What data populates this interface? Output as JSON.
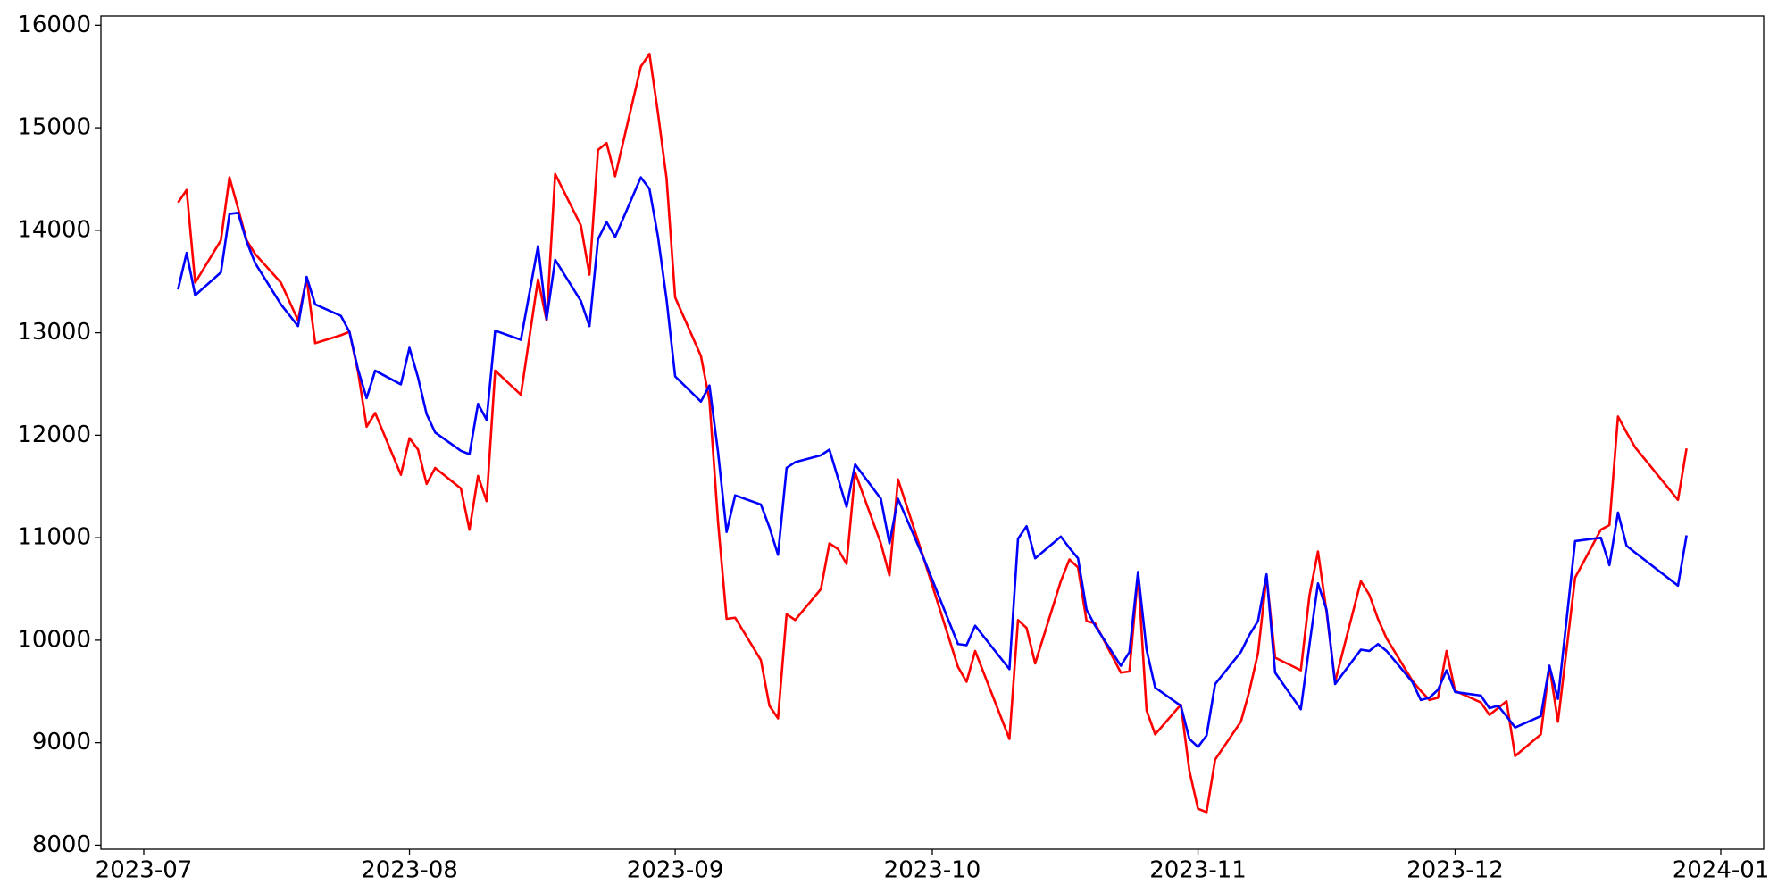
{
  "chart_data": {
    "type": "line",
    "x": [
      "2023-07-05",
      "2023-07-06",
      "2023-07-07",
      "2023-07-10",
      "2023-07-11",
      "2023-07-12",
      "2023-07-13",
      "2023-07-14",
      "2023-07-17",
      "2023-07-19",
      "2023-07-20",
      "2023-07-21",
      "2023-07-24",
      "2023-07-25",
      "2023-07-26",
      "2023-07-27",
      "2023-07-28",
      "2023-07-31",
      "2023-08-01",
      "2023-08-02",
      "2023-08-03",
      "2023-08-04",
      "2023-08-07",
      "2023-08-08",
      "2023-08-09",
      "2023-08-10",
      "2023-08-11",
      "2023-08-14",
      "2023-08-16",
      "2023-08-17",
      "2023-08-18",
      "2023-08-21",
      "2023-08-22",
      "2023-08-23",
      "2023-08-24",
      "2023-08-25",
      "2023-08-28",
      "2023-08-29",
      "2023-08-30",
      "2023-08-31",
      "2023-09-01",
      "2023-09-04",
      "2023-09-05",
      "2023-09-06",
      "2023-09-07",
      "2023-09-08",
      "2023-09-11",
      "2023-09-12",
      "2023-09-13",
      "2023-09-14",
      "2023-09-15",
      "2023-09-18",
      "2023-09-19",
      "2023-09-20",
      "2023-09-21",
      "2023-09-22",
      "2023-09-25",
      "2023-09-26",
      "2023-09-27",
      "2023-09-30",
      "2023-10-04",
      "2023-10-05",
      "2023-10-06",
      "2023-10-10",
      "2023-10-11",
      "2023-10-12",
      "2023-10-13",
      "2023-10-16",
      "2023-10-17",
      "2023-10-18",
      "2023-10-19",
      "2023-10-20",
      "2023-10-23",
      "2023-10-24",
      "2023-10-25",
      "2023-10-26",
      "2023-10-27",
      "2023-10-30",
      "2023-10-31",
      "2023-11-01",
      "2023-11-02",
      "2023-11-03",
      "2023-11-06",
      "2023-11-07",
      "2023-11-08",
      "2023-11-09",
      "2023-11-10",
      "2023-11-13",
      "2023-11-14",
      "2023-11-15",
      "2023-11-16",
      "2023-11-17",
      "2023-11-20",
      "2023-11-21",
      "2023-11-22",
      "2023-11-23",
      "2023-11-26",
      "2023-11-27",
      "2023-11-28",
      "2023-11-29",
      "2023-11-30",
      "2023-12-01",
      "2023-12-04",
      "2023-12-05",
      "2023-12-06",
      "2023-12-07",
      "2023-12-08",
      "2023-12-11",
      "2023-12-12",
      "2023-12-13",
      "2023-12-15",
      "2023-12-18",
      "2023-12-19",
      "2023-12-20",
      "2023-12-21",
      "2023-12-22",
      "2023-12-27",
      "2023-12-28"
    ],
    "series": [
      {
        "color": "#ff0000",
        "values": [
          14270,
          14393,
          13489,
          13902,
          14516,
          14214,
          13902,
          13768,
          13489,
          13121,
          13534,
          12898,
          12976,
          13009,
          12619,
          12083,
          12217,
          11614,
          11971,
          11860,
          11525,
          11681,
          11480,
          11078,
          11603,
          11357,
          12630,
          12395,
          13522,
          13121,
          14549,
          14047,
          13567,
          14784,
          14851,
          14527,
          15598,
          15721,
          15141,
          14505,
          13344,
          12775,
          12340,
          11157,
          10208,
          10219,
          9806,
          9360,
          9237,
          10253,
          10197,
          10498,
          10945,
          10889,
          10744,
          11636,
          10945,
          10632,
          11569,
          10799,
          9739,
          9594,
          9895,
          9036,
          10197,
          10119,
          9773,
          10576,
          10788,
          10710,
          10186,
          10163,
          9683,
          9695,
          10643,
          9315,
          9081,
          9371,
          8724,
          8355,
          8322,
          8835,
          9204,
          9505,
          9873,
          10621,
          9829,
          9706,
          10431,
          10866,
          10275,
          9594,
          10576,
          10442,
          10208,
          10018,
          9605,
          9505,
          9416,
          9438,
          9895,
          9505,
          9393,
          9271,
          9337,
          9404,
          8869,
          9081,
          9750,
          9204,
          10610,
          11078,
          11123,
          12183,
          12027,
          11882,
          11369,
          11871
        ]
      },
      {
        "color": "#0000ff",
        "values": [
          13422,
          13779,
          13366,
          13589,
          14159,
          14170,
          13891,
          13679,
          13277,
          13065,
          13545,
          13277,
          13165,
          13009,
          12641,
          12362,
          12630,
          12496,
          12853,
          12563,
          12206,
          12027,
          11848,
          11815,
          12306,
          12150,
          13020,
          12931,
          13846,
          13132,
          13712,
          13310,
          13065,
          13913,
          14080,
          13935,
          14516,
          14404,
          13935,
          13322,
          12574,
          12328,
          12485,
          11837,
          11056,
          11413,
          11324,
          11101,
          10833,
          11681,
          11737,
          11804,
          11860,
          11581,
          11302,
          11715,
          11380,
          10945,
          11380,
          10799,
          9962,
          9951,
          10141,
          9717,
          10989,
          11112,
          10799,
          11011,
          10900,
          10799,
          10297,
          10141,
          9750,
          9884,
          10666,
          9907,
          9538,
          9360,
          9036,
          8958,
          9070,
          9572,
          9884,
          10052,
          10186,
          10643,
          9683,
          9326,
          9951,
          10554,
          10297,
          9572,
          9907,
          9895,
          9962,
          9895,
          9594,
          9416,
          9438,
          9516,
          9706,
          9494,
          9460,
          9337,
          9360,
          9259,
          9148,
          9259,
          9750,
          9427,
          10967,
          11000,
          10732,
          11246,
          10922,
          10855,
          10532,
          11023
        ]
      }
    ],
    "xlim": [
      "2023-06-26",
      "2024-01-06"
    ],
    "xticks": [
      "2023-07",
      "2023-08",
      "2023-09",
      "2023-10",
      "2023-11",
      "2023-12",
      "2024-01"
    ],
    "ylim": [
      7960,
      16090
    ],
    "yticks": [
      8000,
      9000,
      10000,
      11000,
      12000,
      13000,
      14000,
      15000,
      16000
    ],
    "grid": false
  }
}
